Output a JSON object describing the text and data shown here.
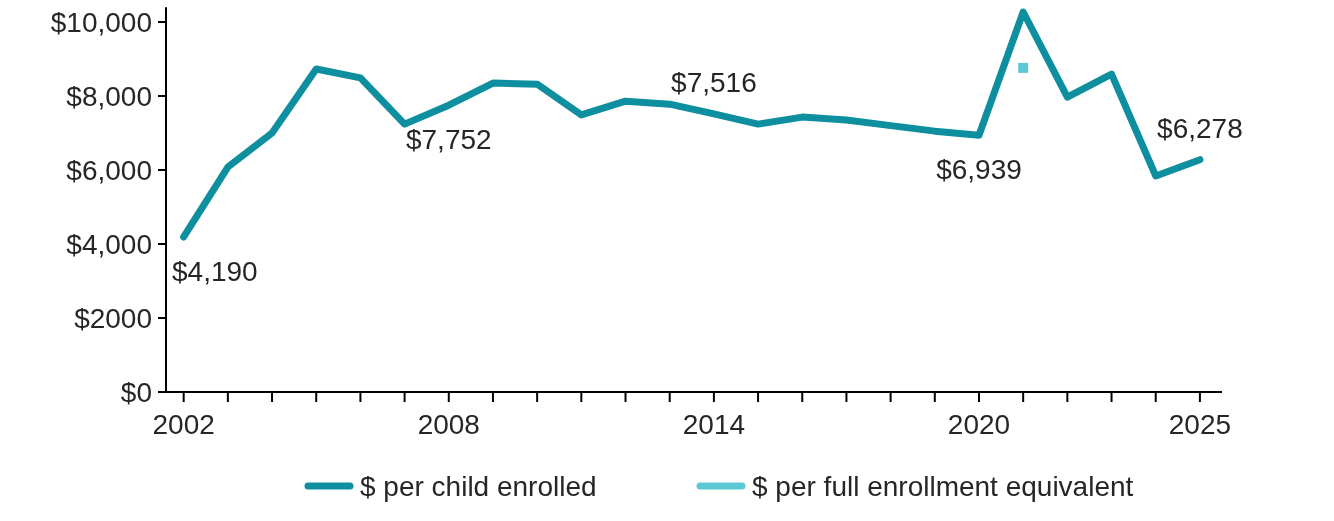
{
  "chart_data": {
    "type": "line",
    "x": [
      2002,
      2003,
      2004,
      2005,
      2006,
      2007,
      2008,
      2009,
      2010,
      2011,
      2012,
      2013,
      2014,
      2015,
      2016,
      2017,
      2018,
      2019,
      2020,
      2021,
      2022,
      2023,
      2024,
      2025
    ],
    "series": [
      {
        "name": "$ per child enrolled",
        "color": "#0e8fa0",
        "values": [
          4190,
          6080,
          7000,
          8730,
          8490,
          7240,
          7752,
          8350,
          8320,
          7490,
          7860,
          7780,
          7516,
          7240,
          7430,
          7350,
          7200,
          7050,
          6939,
          10270,
          7970,
          8590,
          5840,
          6278
        ],
        "value_labels": [
          "$4,190",
          null,
          null,
          null,
          null,
          null,
          "$7,752",
          null,
          null,
          null,
          null,
          null,
          "$7,516",
          null,
          null,
          null,
          null,
          null,
          "$6,939",
          null,
          null,
          null,
          null,
          "$6,278"
        ]
      },
      {
        "name": "$ per full enrollment equivalent",
        "color": "#5bc8d4",
        "type": "scatter",
        "marker": "square",
        "x": [
          2021
        ],
        "values": [
          8760
        ]
      }
    ],
    "xlim": [
      2001.6,
      2025.5
    ],
    "xticks": [
      2002,
      {
        "value": 2003,
        "label": null
      },
      {
        "value": 2004,
        "label": null
      },
      {
        "value": 2005,
        "label": null
      },
      {
        "value": 2006,
        "label": null
      },
      {
        "value": 2007,
        "label": null
      },
      2008,
      {
        "value": 2009,
        "label": null
      },
      {
        "value": 2010,
        "label": null
      },
      {
        "value": 2011,
        "label": null
      },
      {
        "value": 2012,
        "label": null
      },
      {
        "value": 2013,
        "label": null
      },
      2014,
      {
        "value": 2015,
        "label": null
      },
      {
        "value": 2016,
        "label": null
      },
      {
        "value": 2017,
        "label": null
      },
      {
        "value": 2018,
        "label": null
      },
      {
        "value": 2019,
        "label": null
      },
      2020,
      {
        "value": 2021,
        "label": null
      },
      {
        "value": 2022,
        "label": null
      },
      {
        "value": 2023,
        "label": null
      },
      {
        "value": 2024,
        "label": null
      },
      2025
    ],
    "ylim": [
      0,
      10400
    ],
    "yticks": [
      {
        "value": 0,
        "label": "$0"
      },
      {
        "value": 2000,
        "label": "$2000"
      },
      {
        "value": 4000,
        "label": "$4,000"
      },
      {
        "value": 6000,
        "label": "$6,000"
      },
      {
        "value": 8000,
        "label": "$8,000"
      },
      {
        "value": 10000,
        "label": "$10,000"
      }
    ],
    "grid": false,
    "legend": "bottom",
    "line_style": "solid"
  }
}
